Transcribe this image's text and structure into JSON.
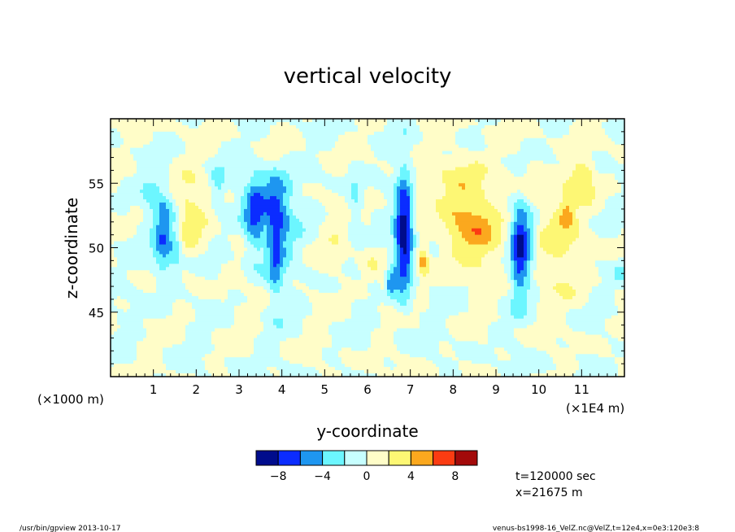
{
  "chart_data": {
    "type": "heatmap",
    "title": "vertical velocity",
    "xlabel": "y-coordinate",
    "ylabel": "z-coordinate",
    "x_unit_left": "(×1000 m)",
    "x_unit_right": "(×1E4 m)",
    "xlim": [
      0,
      12
    ],
    "ylim": [
      40,
      60
    ],
    "x_ticks": [
      "1",
      "2",
      "3",
      "4",
      "5",
      "6",
      "7",
      "8",
      "9",
      "10",
      "11"
    ],
    "y_ticks": [
      "45",
      "50",
      "55"
    ],
    "colorbar": {
      "levels": [
        -10,
        -8,
        -6,
        -4,
        -2,
        0,
        2,
        4,
        6,
        8,
        10
      ],
      "labels": [
        "−8",
        "−4",
        "0",
        "4",
        "8"
      ],
      "label_values": [
        -8,
        -4,
        0,
        4,
        8
      ],
      "colors": [
        "#000c8c",
        "#0b2cff",
        "#1e96f0",
        "#6cf6ff",
        "#c7ffff",
        "#fffdc8",
        "#fdf774",
        "#fba81e",
        "#fb3c12",
        "#a30a0a"
      ]
    },
    "features": [
      {
        "y": 1.25,
        "z": 51.0,
        "amp": -6.5,
        "sy": 0.18,
        "sz": 2.2
      },
      {
        "y": 1.55,
        "z": 50.0,
        "amp": -3.0,
        "sy": 0.1,
        "sz": 1.4
      },
      {
        "y": 0.95,
        "z": 54.5,
        "amp": -2.4,
        "sy": 0.18,
        "sz": 1.0
      },
      {
        "y": 1.85,
        "z": 52.5,
        "amp": 2.6,
        "sy": 0.35,
        "sz": 2.2
      },
      {
        "y": 2.5,
        "z": 55.0,
        "amp": -3.0,
        "sy": 0.12,
        "sz": 0.9
      },
      {
        "y": 3.15,
        "z": 52.0,
        "amp": 1.5,
        "sy": 0.2,
        "sz": 2.5
      },
      {
        "y": 3.35,
        "z": 52.0,
        "amp": -6.5,
        "sy": 0.2,
        "sz": 2.2
      },
      {
        "y": 3.85,
        "z": 50.5,
        "amp": -6.5,
        "sy": 0.14,
        "sz": 2.8
      },
      {
        "y": 3.65,
        "z": 54.0,
        "amp": -3.5,
        "sy": 0.45,
        "sz": 1.4
      },
      {
        "y": 4.15,
        "z": 52.0,
        "amp": -2.5,
        "sy": 0.2,
        "sz": 2.2
      },
      {
        "y": 4.35,
        "z": 54.0,
        "amp": 1.2,
        "sy": 0.15,
        "sz": 1.5
      },
      {
        "y": 5.2,
        "z": 51.0,
        "amp": 1.0,
        "sy": 0.25,
        "sz": 2.0
      },
      {
        "y": 5.7,
        "z": 53.5,
        "amp": -2.6,
        "sy": 0.12,
        "sz": 1.8
      },
      {
        "y": 6.1,
        "z": 49.0,
        "amp": 1.5,
        "sy": 0.18,
        "sz": 1.6
      },
      {
        "y": 6.35,
        "z": 47.2,
        "amp": 2.6,
        "sy": 0.05,
        "sz": 0.5
      },
      {
        "y": 6.55,
        "z": 47.5,
        "amp": -4.2,
        "sy": 0.1,
        "sz": 0.8
      },
      {
        "y": 6.85,
        "z": 51.0,
        "amp": -10.0,
        "sy": 0.15,
        "sz": 3.3
      },
      {
        "y": 7.3,
        "z": 49.0,
        "amp": 4.5,
        "sy": 0.1,
        "sz": 0.8
      },
      {
        "y": 7.2,
        "z": 54.0,
        "amp": 1.2,
        "sy": 0.2,
        "sz": 1.2
      },
      {
        "y": 7.5,
        "z": 53.0,
        "amp": -1.5,
        "sy": 0.3,
        "sz": 2.0
      },
      {
        "y": 8.25,
        "z": 53.0,
        "amp": 4.6,
        "sy": 0.55,
        "sz": 2.6
      },
      {
        "y": 8.55,
        "z": 50.5,
        "amp": 2.0,
        "sy": 0.4,
        "sz": 1.5
      },
      {
        "y": 9.05,
        "z": 53.5,
        "amp": -1.2,
        "sy": 0.2,
        "sz": 1.5
      },
      {
        "y": 9.55,
        "z": 50.0,
        "amp": -8.8,
        "sy": 0.16,
        "sz": 2.6
      },
      {
        "y": 9.8,
        "z": 50.5,
        "amp": -3.0,
        "sy": 0.15,
        "sz": 1.5
      },
      {
        "y": 10.3,
        "z": 51.0,
        "amp": 2.6,
        "sy": 0.55,
        "sz": 3.0
      },
      {
        "y": 11.0,
        "z": 55.5,
        "amp": 3.5,
        "sy": 0.25,
        "sz": 1.0
      },
      {
        "y": 10.65,
        "z": 52.8,
        "amp": 3.0,
        "sy": 0.12,
        "sz": 0.9
      },
      {
        "y": 11.4,
        "z": 55.8,
        "amp": -1.5,
        "sy": 0.12,
        "sz": 0.8
      },
      {
        "y": 11.9,
        "z": 48.2,
        "amp": -2.0,
        "sy": 0.1,
        "sz": 0.5
      }
    ]
  },
  "info": {
    "time_label": "t=120000 sec",
    "x_label": "x=21675 m"
  },
  "footer": {
    "left": "/usr/bin/gpview  2013-10-17",
    "right": "venus-bs1998-16_VelZ.nc@VelZ,t=12e4,x=0e3:120e3:8"
  }
}
